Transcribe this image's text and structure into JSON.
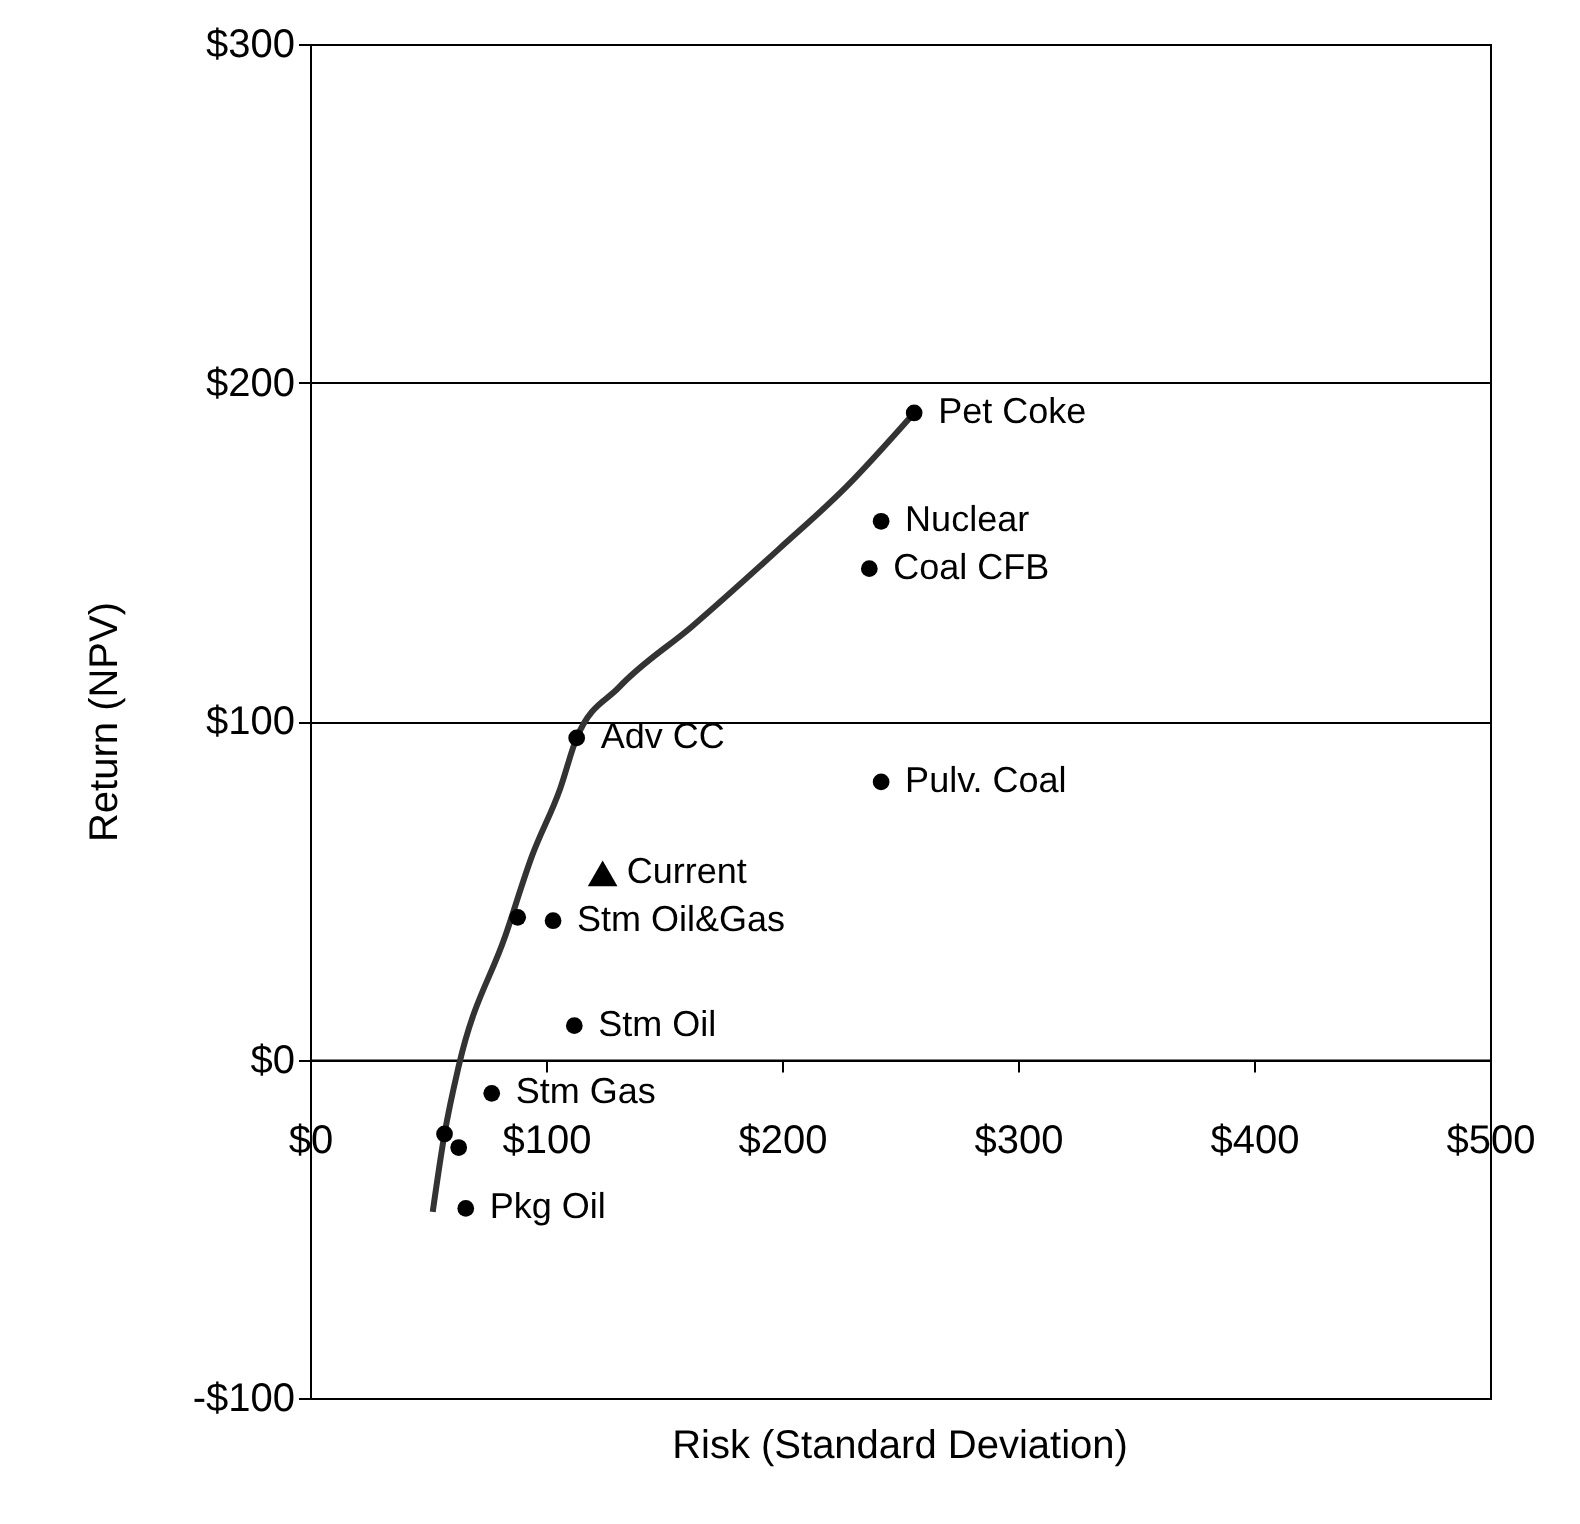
{
  "chart_data": {
    "type": "scatter",
    "xlabel": "Risk (Standard Deviation)",
    "ylabel": "Return (NPV)",
    "xlim": [
      0,
      500
    ],
    "ylim": [
      -100,
      300
    ],
    "xticks": [
      {
        "value": 0,
        "label": "$0"
      },
      {
        "value": 100,
        "label": "$100"
      },
      {
        "value": 200,
        "label": "$200"
      },
      {
        "value": 300,
        "label": "$300"
      },
      {
        "value": 400,
        "label": "$400"
      },
      {
        "value": 500,
        "label": "$500"
      }
    ],
    "yticks": [
      {
        "value": -100,
        "label": "-$100"
      },
      {
        "value": 0,
        "label": "$0"
      },
      {
        "value": 100,
        "label": "$100"
      },
      {
        "value": 200,
        "label": "$200"
      },
      {
        "value": 300,
        "label": "$300"
      }
    ],
    "grid": "y",
    "series": [
      {
        "type": "line",
        "color": "#333333",
        "line_style": "solid",
        "marker": "none",
        "x": [
          52,
          57,
          63,
          83,
          94,
          106,
          113,
          131,
          162,
          199,
          227,
          256
        ],
        "values": [
          -45,
          -22,
          -2,
          37,
          60,
          80,
          95,
          110,
          128,
          151,
          169,
          191
        ]
      },
      {
        "color": "#000000",
        "marker": "circle",
        "x": [
          256,
          242,
          237,
          113,
          242,
          88,
          103,
          112,
          77,
          57,
          63,
          66
        ],
        "values": [
          191,
          159,
          145,
          95,
          82,
          42,
          41,
          10,
          -10,
          -22,
          -26,
          -44
        ]
      },
      {
        "color": "#000000",
        "marker": "triangle",
        "x": [
          124
        ],
        "values": [
          55
        ]
      }
    ],
    "annotations": [
      {
        "text": "Pet Coke",
        "x": 256,
        "y": 191
      },
      {
        "text": "Nuclear",
        "x": 242,
        "y": 159
      },
      {
        "text": "Coal CFB",
        "x": 237,
        "y": 145
      },
      {
        "text": "Adv CC",
        "x": 113,
        "y": 95
      },
      {
        "text": "Pulv. Coal",
        "x": 242,
        "y": 82
      },
      {
        "text": "Current",
        "x": 124,
        "y": 55
      },
      {
        "text": "Stm Oil&Gas",
        "x": 103,
        "y": 41
      },
      {
        "text": "Stm Oil",
        "x": 112,
        "y": 10
      },
      {
        "text": "Stm Gas",
        "x": 77,
        "y": -10
      },
      {
        "text": "Pkg Oil",
        "x": 66,
        "y": -44
      }
    ]
  }
}
